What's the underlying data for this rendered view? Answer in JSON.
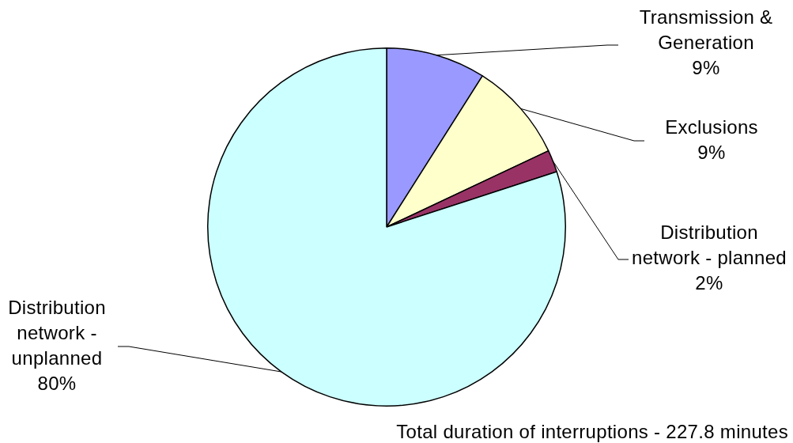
{
  "chart_data": {
    "type": "pie",
    "categories": [
      "Transmission & Generation",
      "Exclusions",
      "Distribution network - planned",
      "Distribution network - unplanned"
    ],
    "values": [
      9,
      9,
      2,
      80
    ],
    "colors": [
      "#9999ff",
      "#ffffcc",
      "#993366",
      "#ccffff"
    ],
    "value_labels": [
      "9%",
      "9%",
      "2%",
      "80%"
    ],
    "annotations": [
      "Total duration of interruptions - 227.8 minutes"
    ]
  }
}
